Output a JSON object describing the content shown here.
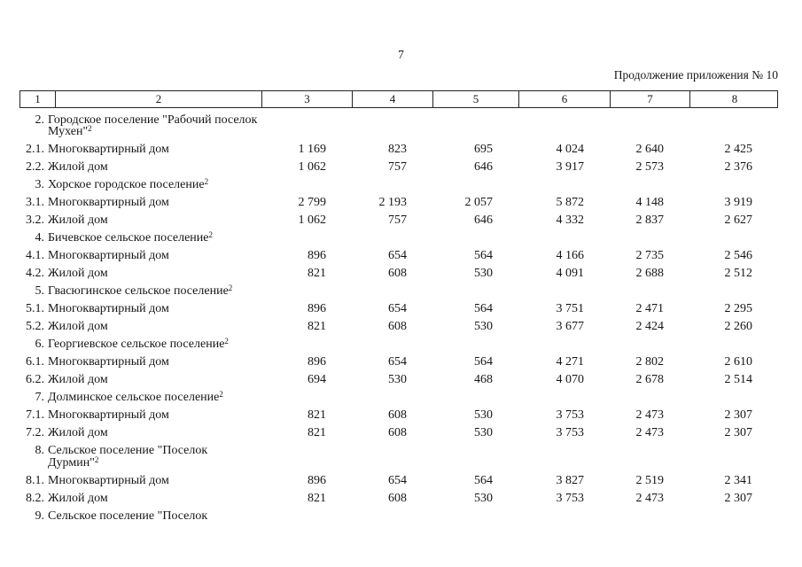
{
  "page": {
    "number": "7",
    "continuation": "Продолжение приложения № 10"
  },
  "table": {
    "header_cols": [
      "1",
      "2",
      "3",
      "4",
      "5",
      "6",
      "7",
      "8"
    ],
    "rows": [
      {
        "type": "section",
        "num": "2.",
        "text": "Городское поселение \"Рабочий поселок Мухен\"",
        "sup": "2"
      },
      {
        "type": "item",
        "num": "2.1.",
        "text": "Многоквартирный дом",
        "values": [
          "1 169",
          "823",
          "695",
          "4 024",
          "2 640",
          "2 425"
        ]
      },
      {
        "type": "item",
        "num": "2.2.",
        "text": "Жилой дом",
        "values": [
          "1 062",
          "757",
          "646",
          "3 917",
          "2 573",
          "2 376"
        ]
      },
      {
        "type": "section",
        "num": "3.",
        "text": "Хорское городское поселение",
        "sup": "2"
      },
      {
        "type": "item",
        "num": "3.1.",
        "text": "Многоквартирный дом",
        "values": [
          "2 799",
          "2 193",
          "2 057",
          "5 872",
          "4 148",
          "3 919"
        ]
      },
      {
        "type": "item",
        "num": "3.2.",
        "text": "Жилой дом",
        "values": [
          "1 062",
          "757",
          "646",
          "4 332",
          "2 837",
          "2 627"
        ]
      },
      {
        "type": "section",
        "num": "4.",
        "text": "Бичевское сельское поселение",
        "sup": "2"
      },
      {
        "type": "item",
        "num": "4.1.",
        "text": "Многоквартирный дом",
        "values": [
          "896",
          "654",
          "564",
          "4 166",
          "2 735",
          "2 546"
        ]
      },
      {
        "type": "item",
        "num": "4.2.",
        "text": "Жилой дом",
        "values": [
          "821",
          "608",
          "530",
          "4 091",
          "2 688",
          "2 512"
        ]
      },
      {
        "type": "section",
        "num": "5.",
        "text": "Гвасюгинское сельское поселение",
        "sup": "2"
      },
      {
        "type": "item",
        "num": "5.1.",
        "text": "Многоквартирный дом",
        "values": [
          "896",
          "654",
          "564",
          "3 751",
          "2 471",
          "2 295"
        ]
      },
      {
        "type": "item",
        "num": "5.2.",
        "text": "Жилой дом",
        "values": [
          "821",
          "608",
          "530",
          "3 677",
          "2 424",
          "2 260"
        ]
      },
      {
        "type": "section",
        "num": "6.",
        "text": "Георгиевское сельское поселение",
        "sup": "2"
      },
      {
        "type": "item",
        "num": "6.1.",
        "text": "Многоквартирный дом",
        "values": [
          "896",
          "654",
          "564",
          "4 271",
          "2 802",
          "2 610"
        ]
      },
      {
        "type": "item",
        "num": "6.2.",
        "text": "Жилой дом",
        "values": [
          "694",
          "530",
          "468",
          "4 070",
          "2 678",
          "2 514"
        ]
      },
      {
        "type": "section",
        "num": "7.",
        "text": "Долминское сельское поселение",
        "sup": "2"
      },
      {
        "type": "item",
        "num": "7.1.",
        "text": "Многоквартирный дом",
        "values": [
          "821",
          "608",
          "530",
          "3 753",
          "2 473",
          "2 307"
        ]
      },
      {
        "type": "item",
        "num": "7.2.",
        "text": "Жилой дом",
        "values": [
          "821",
          "608",
          "530",
          "3 753",
          "2 473",
          "2 307"
        ]
      },
      {
        "type": "section",
        "num": "8.",
        "text": "Сельское поселение \"Поселок Дурмин\"",
        "sup": "2"
      },
      {
        "type": "item",
        "num": "8.1.",
        "text": "Многоквартирный дом",
        "values": [
          "896",
          "654",
          "564",
          "3 827",
          "2 519",
          "2 341"
        ]
      },
      {
        "type": "item",
        "num": "8.2.",
        "text": "Жилой дом",
        "values": [
          "821",
          "608",
          "530",
          "3 753",
          "2 473",
          "2 307"
        ]
      },
      {
        "type": "section",
        "num": "9.",
        "text": "Сельское поселение \"Поселок",
        "sup": ""
      }
    ]
  }
}
